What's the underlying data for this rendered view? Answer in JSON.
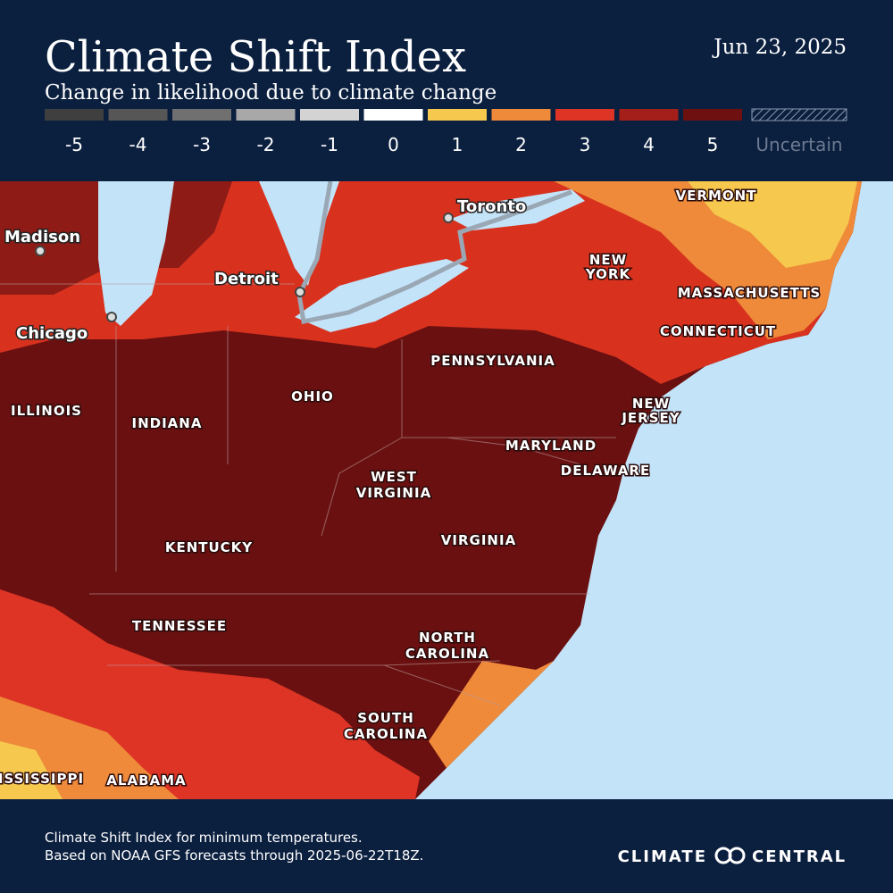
{
  "header": {
    "title": "Climate Shift Index",
    "subtitle": "Change in likelihood due to climate change",
    "date": "Jun 23, 2025"
  },
  "legend": {
    "items": [
      {
        "label": "-5",
        "color": "#3f3f3f"
      },
      {
        "label": "-4",
        "color": "#565656"
      },
      {
        "label": "-3",
        "color": "#707070"
      },
      {
        "label": "-2",
        "color": "#a8a8a8"
      },
      {
        "label": "-1",
        "color": "#d3d3d3"
      },
      {
        "label": "0",
        "color": "#ffffff"
      },
      {
        "label": "1",
        "color": "#f6c84e"
      },
      {
        "label": "2",
        "color": "#ee8a3a"
      },
      {
        "label": "3",
        "color": "#de3426"
      },
      {
        "label": "4",
        "color": "#a41f1a"
      },
      {
        "label": "5",
        "color": "#6e1010"
      }
    ],
    "uncertain": "Uncertain"
  },
  "map": {
    "cities": [
      "Madison",
      "Chicago",
      "Detroit",
      "Toronto"
    ],
    "regions": [
      [
        "VERMONT"
      ],
      [
        "NEW",
        "YORK"
      ],
      [
        "MASSACHUSETTS"
      ],
      [
        "CONNECTICUT"
      ],
      [
        "PENNSYLVANIA"
      ],
      [
        "OHIO"
      ],
      [
        "ILLINOIS"
      ],
      [
        "INDIANA"
      ],
      [
        "NEW",
        "JERSEY"
      ],
      [
        "MARYLAND"
      ],
      [
        "DELAWARE"
      ],
      [
        "WEST",
        "VIRGINIA"
      ],
      [
        "KENTUCKY"
      ],
      [
        "VIRGINIA"
      ],
      [
        "TENNESSEE"
      ],
      [
        "NORTH",
        "CAROLINA"
      ],
      [
        "SOUTH",
        "CAROLINA"
      ],
      [
        "MISSISSIPPI"
      ],
      [
        "ALABAMA"
      ]
    ]
  },
  "footer": {
    "note": [
      "Climate Shift Index for minimum temperatures.",
      "Based on NOAA GFS forecasts through 2025-06-22T18Z."
    ],
    "brand": [
      "CLIMATE",
      "CENTRAL"
    ]
  }
}
